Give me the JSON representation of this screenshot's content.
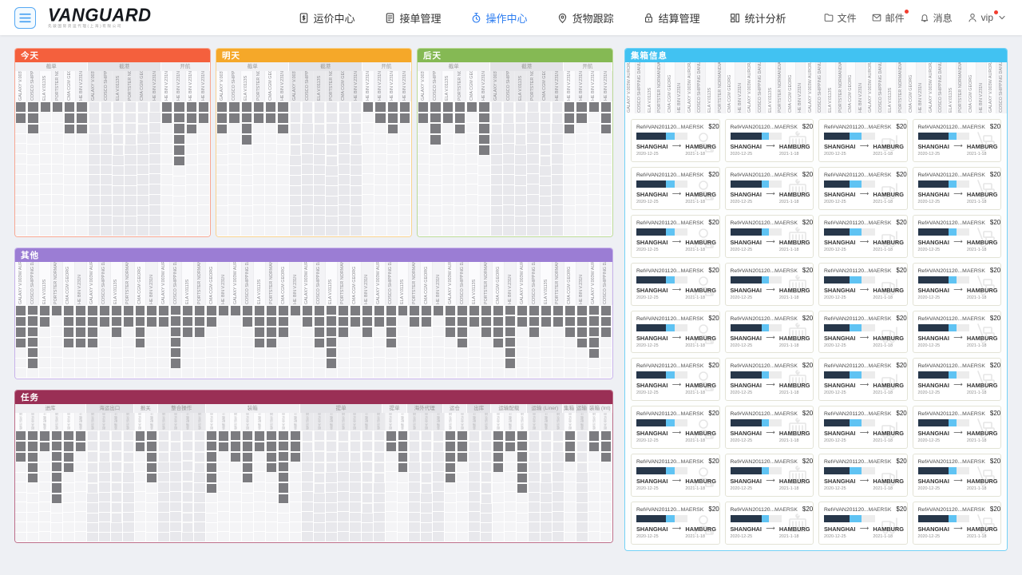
{
  "navbar": {
    "logo": {
      "text": "VANGUARD",
      "subtitle": "先骏国际货运代理(上海)有限公司"
    },
    "menu": [
      {
        "name": "fare-center",
        "icon": "fare-icon",
        "label": "运价中心",
        "active": false
      },
      {
        "name": "order-management",
        "icon": "order-icon",
        "label": "接单管理",
        "active": false
      },
      {
        "name": "operation-center",
        "icon": "timer-icon",
        "label": "操作中心",
        "active": true
      },
      {
        "name": "cargo-tracking",
        "icon": "pin-icon",
        "label": "货物跟踪",
        "active": false
      },
      {
        "name": "settlement",
        "icon": "lock-icon",
        "label": "结算管理",
        "active": false
      },
      {
        "name": "statistics",
        "icon": "stats-icon",
        "label": "统计分析",
        "active": false
      }
    ],
    "utilities": [
      {
        "name": "files",
        "icon": "folder-icon",
        "label": "文件",
        "dot": false,
        "chevron": false
      },
      {
        "name": "mail",
        "icon": "mail-icon",
        "label": "邮件",
        "dot": true,
        "chevron": false
      },
      {
        "name": "messages",
        "icon": "bell-icon",
        "label": "消息",
        "dot": false,
        "chevron": false
      },
      {
        "name": "vip",
        "icon": "user-icon",
        "label": "vip",
        "dot": true,
        "chevron": true
      }
    ]
  },
  "vessels": [
    "GALAXY V.003W AURORA",
    "COSCO SHIPPING DANUBE",
    "ELA V.0113S",
    "PORTSTER NORMANDIA",
    "CMA CGM GEORG",
    "HE BIN V.231N"
  ],
  "panels": {
    "today": {
      "title": "今天",
      "color": "#f4603d",
      "border": "#f7a893",
      "rows": 13,
      "groups": [
        {
          "label": "截单",
          "span": 6,
          "shaded": false
        },
        {
          "label": "截港",
          "span": 6,
          "shaded": true
        },
        {
          "label": "开航",
          "span": 4,
          "shaded": false,
          "fixed_label": "HE BIN V.231N"
        }
      ],
      "depths": [
        2,
        3,
        1,
        1,
        3,
        3,
        3,
        3,
        5,
        4,
        3,
        1,
        2,
        6,
        3,
        2
      ]
    },
    "tomorrow": {
      "title": "明天",
      "color": "#f5a829",
      "border": "#f8d290",
      "rows": 13,
      "groups": [
        {
          "label": "截单",
          "span": 6,
          "shaded": false
        },
        {
          "label": "截港",
          "span": 6,
          "shaded": true
        },
        {
          "label": "开航",
          "span": 4,
          "shaded": false,
          "fixed_label": "HE BIN V.231N"
        }
      ],
      "depths": [
        3,
        2,
        4,
        2,
        2,
        3,
        5,
        2,
        3,
        6,
        2,
        4,
        1,
        2,
        3,
        2
      ]
    },
    "dayafter": {
      "title": "后天",
      "color": "#85b954",
      "border": "#bcda97",
      "rows": 13,
      "groups": [
        {
          "label": "截单",
          "span": 6,
          "shaded": false
        },
        {
          "label": "截港",
          "span": 6,
          "shaded": true
        },
        {
          "label": "开航",
          "span": 4,
          "shaded": false,
          "fixed_label": "HE BIN V.231N"
        }
      ],
      "depths": [
        2,
        4,
        2,
        3,
        1,
        5,
        3,
        2,
        4,
        1,
        6,
        2,
        3,
        2,
        1,
        3
      ]
    },
    "other": {
      "title": "其他",
      "color": "#9b7dd4",
      "border": "#c7b2ea",
      "rows": 7,
      "depths": [
        4,
        6,
        2,
        1,
        4,
        4,
        4,
        2,
        3,
        2,
        4,
        2,
        2,
        6,
        3,
        3,
        2,
        1,
        1,
        2,
        4,
        4,
        3,
        1,
        2,
        4,
        6,
        3,
        2,
        3,
        2,
        4,
        1,
        2,
        2,
        1,
        3,
        4,
        2,
        3,
        4,
        6,
        2,
        3,
        2,
        2,
        3,
        4,
        5,
        3
      ]
    },
    "task": {
      "title": "任务",
      "color": "#9a2f55",
      "border": "#bd6f8a",
      "rows": 11,
      "groups": [
        {
          "label": "进库",
          "span": 6,
          "shaded": false
        },
        {
          "label": "海运出口",
          "span": 4,
          "shaded": true
        },
        {
          "label": "报关",
          "span": 2,
          "shaded": false
        },
        {
          "label": "整合操作",
          "span": 4,
          "shaded": true
        },
        {
          "label": "装箱",
          "span": 8,
          "shaded": false
        },
        {
          "label": "提单",
          "span": 7,
          "shaded": true
        },
        {
          "label": "提单",
          "span": 2,
          "shaded": false
        },
        {
          "label": "海外代理",
          "span": 3,
          "shaded": true
        },
        {
          "label": "运仓",
          "span": 2,
          "shaded": false
        },
        {
          "label": "出库",
          "span": 2,
          "shaded": true
        },
        {
          "label": "运输配载",
          "span": 3,
          "shaded": false
        },
        {
          "label": "运输 (Liner)",
          "span": 3,
          "shaded": true
        },
        {
          "label": "集箱",
          "span": 1,
          "shaded": false
        },
        {
          "label": "运输",
          "span": 1,
          "shaded": true
        },
        {
          "label": "装箱 (Int)",
          "span": 2,
          "shaded": false
        }
      ],
      "col_labels": [
        "收货 进仓 操作",
        "报关 单证 审核",
        "装箱 配载 计划"
      ],
      "depths": [
        3,
        5,
        2,
        7,
        4,
        2,
        6,
        3,
        9,
        4,
        2,
        5,
        3,
        2,
        10,
        4,
        6,
        2,
        3,
        5,
        2,
        4,
        7,
        3,
        2,
        6,
        4,
        2,
        3,
        8,
        5,
        2,
        4,
        3,
        6,
        2,
        5,
        3,
        2,
        7,
        4,
        2,
        6,
        3,
        5,
        2,
        3,
        4,
        2,
        3
      ]
    }
  },
  "container_panel": {
    "title": "集箱信息",
    "color": "#41c2f2",
    "border": "#74d2f6",
    "label_cols": 38,
    "card_rows": 9,
    "card_cols": 4,
    "card": {
      "ref": "Ref#VAN201120...",
      "carrier": "MAERSK",
      "price": "$200",
      "origin": "SHANGHAI",
      "origin_date": "2020-12-25",
      "destination": "HAMBURG",
      "destination_date": "2021-1-18",
      "arrow": "⟶"
    },
    "progress_variants": [
      [
        57,
        18
      ],
      [
        62,
        14
      ],
      [
        50,
        23
      ],
      [
        60,
        16
      ]
    ],
    "card_icons": [
      "person-icon",
      "container-icon",
      "forklift-icon",
      "handtruck-icon"
    ],
    "bar_dark_color": "#27374a",
    "bar_blue_color": "#5fc3f3"
  }
}
